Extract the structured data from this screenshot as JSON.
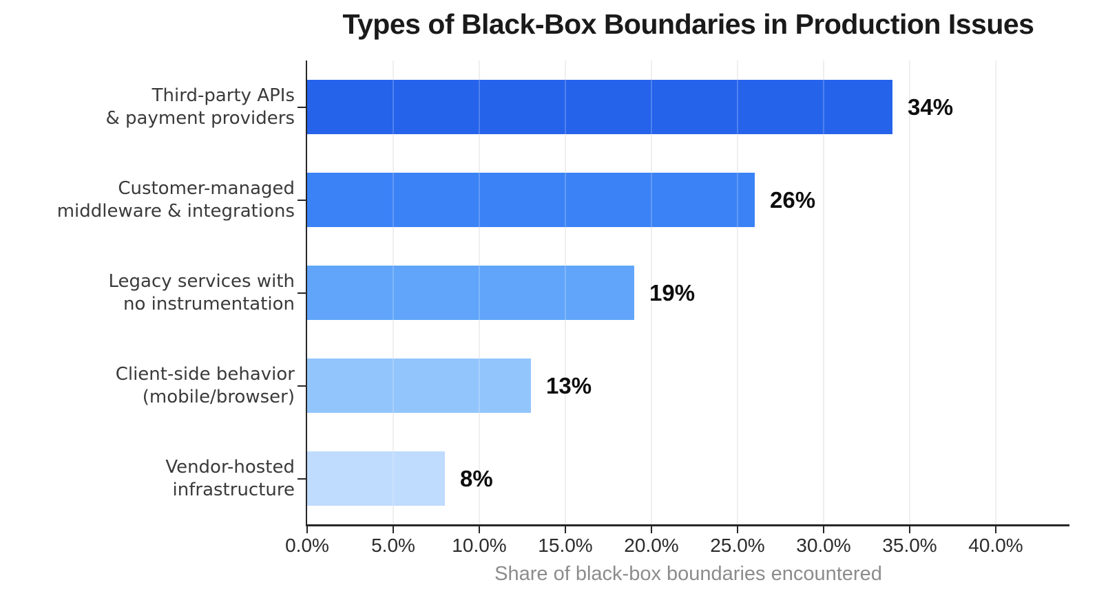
{
  "chart_data": {
    "type": "bar",
    "orientation": "horizontal",
    "title": "Types of Black-Box Boundaries in Production Issues",
    "xlabel": "Share of black-box boundaries encountered",
    "categories": [
      "Third-party APIs\n& payment providers",
      "Customer-managed\nmiddleware & integrations",
      "Legacy services with\nno instrumentation",
      "Client-side behavior\n(mobile/browser)",
      "Vendor-hosted\ninfrastructure"
    ],
    "values": [
      34,
      26,
      19,
      13,
      8
    ],
    "value_labels": [
      "34%",
      "26%",
      "19%",
      "13%",
      "8%"
    ],
    "bar_colors": [
      "#2563eb",
      "#3b82f6",
      "#60a5fa",
      "#93c5fd",
      "#bfdbfe"
    ],
    "xlim": [
      0,
      44.28
    ],
    "x_tick_values": [
      0,
      5,
      10,
      15,
      20,
      25,
      30,
      35,
      40
    ],
    "x_tick_labels": [
      "0.0%",
      "5.0%",
      "10.0%",
      "15.0%",
      "20.0%",
      "25.0%",
      "30.0%",
      "35.0%",
      "40.0%"
    ],
    "grid": "vertical, light gray, drawn above bars",
    "legend": "none",
    "axis_color": "#262626",
    "grid_color": "#ebebeb",
    "title_color": "#1a1a1a",
    "tick_label_color": "#2b2b2b",
    "category_label_color": "#3a3a3a",
    "value_label_color": "#0d0d0d",
    "xlabel_color": "#8c8c8c",
    "background_color": "#ffffff"
  }
}
